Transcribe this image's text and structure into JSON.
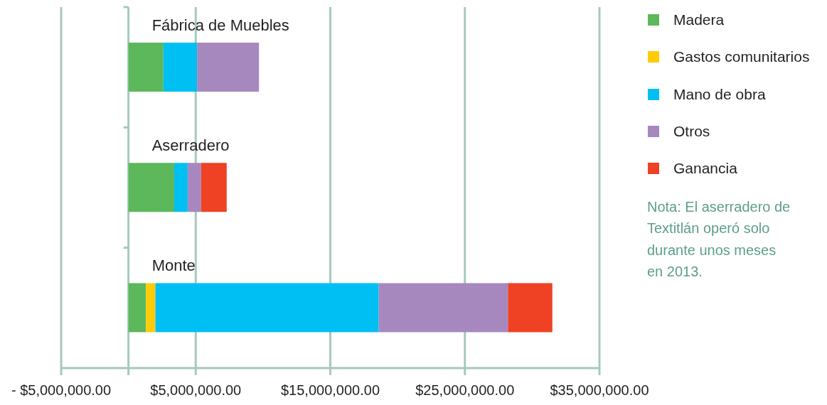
{
  "chart_data": {
    "type": "bar",
    "orientation": "horizontal",
    "stacked": true,
    "categories": [
      "Fábrica de Muebles",
      "Aserradero",
      "Monte"
    ],
    "series": [
      {
        "name": "Madera",
        "color": "#5cb85a",
        "values": [
          2600000,
          3400000,
          1300000
        ]
      },
      {
        "name": "Gastos comunitarios",
        "color": "#ffcb05",
        "values": [
          null,
          null,
          700000
        ]
      },
      {
        "name": "Mano de obra",
        "color": "#00bff3",
        "values": [
          2500000,
          1000000,
          16600000
        ]
      },
      {
        "name": "Otros",
        "color": "#a688be",
        "values": [
          4600000,
          1000000,
          9600000
        ]
      },
      {
        "name": "Ganancia",
        "color": "#ef4123",
        "values": [
          null,
          1900000,
          3300000
        ]
      }
    ],
    "xlim": [
      -5000000,
      35000000
    ],
    "xticks": [
      {
        "value": -5000000,
        "label": "- $5,000,000.00"
      },
      {
        "value": 5000000,
        "label": "$5,000,000.00"
      },
      {
        "value": 15000000,
        "label": "$15,000,000.00"
      },
      {
        "value": 25000000,
        "label": "$25,000,000.00"
      },
      {
        "value": 35000000,
        "label": "$35,000,000.00"
      }
    ],
    "grid": "x",
    "legend": "right",
    "annotations": [
      "Nota: El aserradero de Textitlán operó solo durante unos meses en 2013."
    ]
  }
}
